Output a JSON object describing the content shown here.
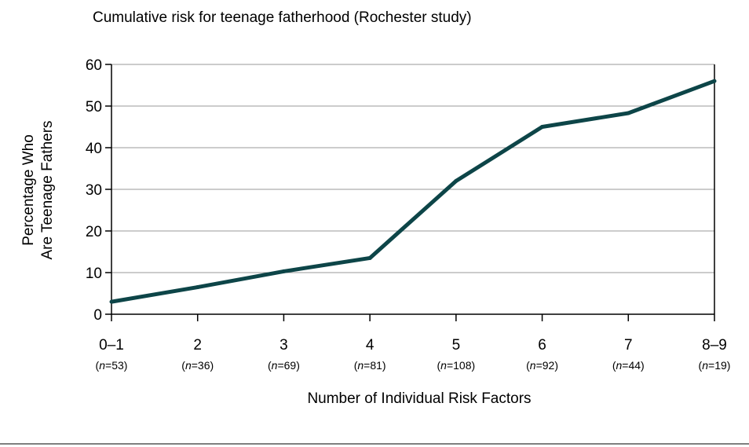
{
  "chart_data": {
    "type": "line",
    "title": "Cumulative risk for teenage fatherhood (Rochester study)",
    "xlabel": "Number of Individual Risk Factors",
    "ylabel_lines": [
      "Percentage Who",
      "Are Teenage Fathers"
    ],
    "categories": [
      "0–1",
      "2",
      "3",
      "4",
      "5",
      "6",
      "7",
      "8–9"
    ],
    "n_labels": [
      {
        "italic": "n",
        "value": "=53"
      },
      {
        "italic": "n",
        "value": "=36"
      },
      {
        "italic": "n",
        "value": "=69"
      },
      {
        "italic": "n",
        "value": "=81"
      },
      {
        "italic": "n",
        "value": "=108"
      },
      {
        "italic": "n",
        "value": "=92"
      },
      {
        "italic": "n",
        "value": "=44"
      },
      {
        "italic": "n",
        "value": "=19"
      }
    ],
    "values": [
      3,
      6.5,
      10.3,
      13.5,
      32,
      45,
      48.3,
      56
    ],
    "ylim": [
      0,
      60
    ],
    "yticks": [
      "0",
      "10",
      "20",
      "30",
      "40",
      "50",
      "60"
    ],
    "grid": true,
    "line_color": "#0d4548",
    "grid_color": "#9a9a9a",
    "bottom_rule_color": "#7f7f7f"
  }
}
